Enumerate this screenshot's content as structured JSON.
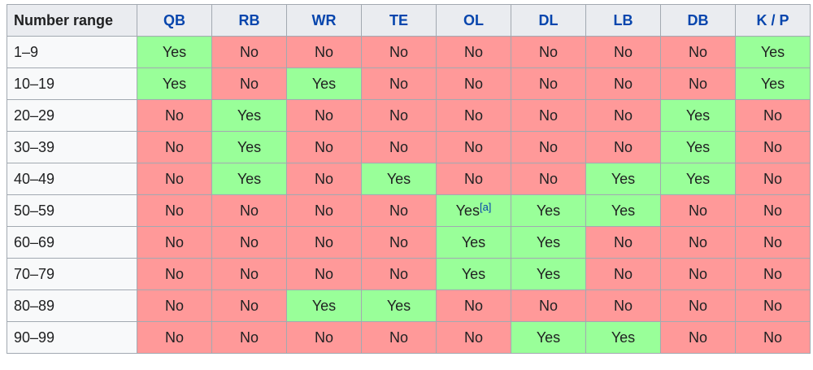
{
  "table": {
    "header": [
      "Number range",
      "QB",
      "RB",
      "WR",
      "TE",
      "OL",
      "DL",
      "LB",
      "DB",
      "K / P"
    ],
    "cell_colors": {
      "Yes": "#99ff99",
      "No": "#ff9999"
    },
    "rows": [
      [
        "1–9",
        "Yes",
        "No",
        "No",
        "No",
        "No",
        "No",
        "No",
        "No",
        "Yes"
      ],
      [
        "10–19",
        "Yes",
        "No",
        "Yes",
        "No",
        "No",
        "No",
        "No",
        "No",
        "Yes"
      ],
      [
        "20–29",
        "No",
        "Yes",
        "No",
        "No",
        "No",
        "No",
        "No",
        "Yes",
        "No"
      ],
      [
        "30–39",
        "No",
        "Yes",
        "No",
        "No",
        "No",
        "No",
        "No",
        "Yes",
        "No"
      ],
      [
        "40–49",
        "No",
        "Yes",
        "No",
        "Yes",
        "No",
        "No",
        "Yes",
        "Yes",
        "No"
      ],
      [
        "50–59",
        "No",
        "No",
        "No",
        "No",
        {
          "text": "Yes",
          "note": "[a]"
        },
        "Yes",
        "Yes",
        "No",
        "No"
      ],
      [
        "60–69",
        "No",
        "No",
        "No",
        "No",
        "Yes",
        "Yes",
        "No",
        "No",
        "No"
      ],
      [
        "70–79",
        "No",
        "No",
        "No",
        "No",
        "Yes",
        "Yes",
        "No",
        "No",
        "No"
      ],
      [
        "80–89",
        "No",
        "No",
        "Yes",
        "Yes",
        "No",
        "No",
        "No",
        "No",
        "No"
      ],
      [
        "90–99",
        "No",
        "No",
        "No",
        "No",
        "No",
        "Yes",
        "Yes",
        "No",
        "No"
      ]
    ]
  }
}
